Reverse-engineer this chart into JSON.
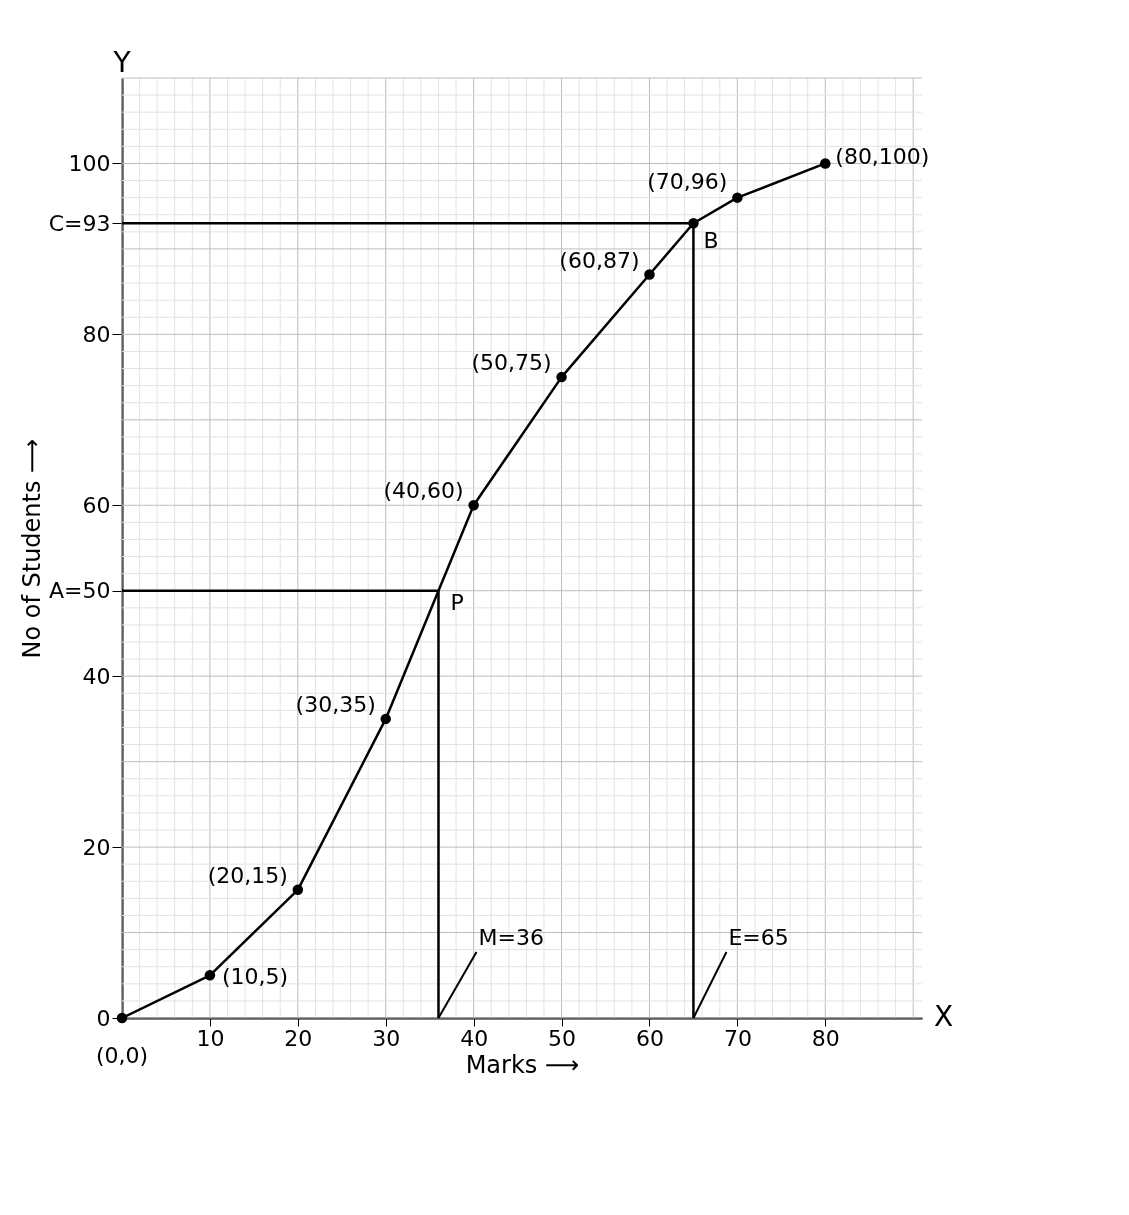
{
  "chart_data": {
    "type": "line",
    "xlabel": "Marks ⟶",
    "ylabel": "No of Students ⟶",
    "x": [
      0,
      10,
      20,
      30,
      40,
      50,
      60,
      65,
      70,
      80
    ],
    "series": [
      {
        "color": "#000000",
        "values": [
          0,
          5,
          15,
          35,
          60,
          75,
          87,
          93,
          96,
          100
        ],
        "marker": "circle"
      },
      {
        "color": "#000000",
        "x": [
          0,
          36,
          36
        ],
        "values": [
          50,
          50,
          0
        ],
        "marker": "none"
      },
      {
        "color": "#000000",
        "x": [
          65,
          65,
          0
        ],
        "values": [
          0,
          93,
          93
        ],
        "marker": "none"
      }
    ],
    "xlim": [
      0,
      91
    ],
    "ylim": [
      0,
      110
    ],
    "xticks": [
      10,
      20,
      30,
      40,
      50,
      60,
      70,
      80
    ],
    "yticks": [
      0,
      20,
      40,
      {
        "value": 50,
        "label": "A=50"
      },
      60,
      80,
      {
        "value": 93,
        "label": "C=93"
      },
      100
    ],
    "grid": true,
    "line_style": "solid",
    "annotations": [
      "X",
      "Y",
      {
        "text": "(10,5)",
        "x": 10,
        "y": 5
      },
      {
        "text": "(20,15)",
        "x": 20,
        "y": 15
      },
      {
        "text": "(30,35)",
        "x": 30,
        "y": 35
      },
      {
        "text": "(40,60)",
        "x": 40,
        "y": 60
      },
      {
        "text": "(50,75)",
        "x": 50,
        "y": 75
      },
      {
        "text": "(60,87)",
        "x": 60,
        "y": 87
      },
      {
        "text": "(70,96)",
        "x": 70,
        "y": 96
      },
      {
        "text": "(80,100)",
        "x": 80,
        "y": 100
      },
      {
        "text": "(0,0)",
        "x": 0,
        "y": 0
      },
      {
        "text": "P",
        "x": 36,
        "y": 50
      },
      {
        "text": "B",
        "x": 65,
        "y": 93
      },
      {
        "text": "M=36",
        "x": 36,
        "y": 0
      },
      {
        "text": "E=65",
        "x": 65,
        "y": 0
      }
    ]
  }
}
